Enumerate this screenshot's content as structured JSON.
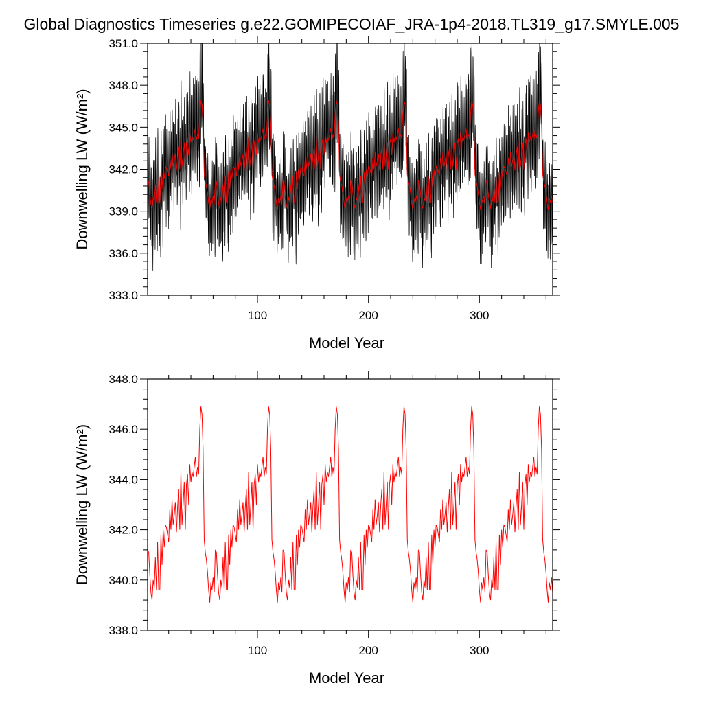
{
  "title": "Global Diagnostics Timeseries g.e22.GOMIPECOIAF_JRA-1p4-2018.TL319_g17.SMYLE.005",
  "colors": {
    "monthly": "#000000",
    "annual": "#ff0000",
    "axes": "#000000"
  },
  "chart_data": [
    {
      "type": "line",
      "title": "",
      "xlabel": "Model Year",
      "ylabel": "Downwelling LW (W/m²)",
      "xlim": [
        1,
        366
      ],
      "ylim": [
        333.0,
        351.0
      ],
      "xticks": [
        100,
        200,
        300
      ],
      "xtick_labels": [
        "100",
        "200",
        "300"
      ],
      "yticks": [
        333.0,
        336.0,
        339.0,
        342.0,
        345.0,
        348.0,
        351.0
      ],
      "ytick_labels": [
        "333.0",
        "336.0",
        "339.0",
        "342.0",
        "345.0",
        "348.0",
        "351.0"
      ],
      "grid": false,
      "cycle_length_years": 61,
      "cycles": 6,
      "series": [
        {
          "name": "",
          "color": "#000000",
          "resolution": "monthly",
          "annual_min_range": [
            335.0,
            337.5
          ],
          "annual_max_range": [
            342.0,
            349.5
          ]
        },
        {
          "name": "",
          "color": "#ff0000",
          "resolution": "annual",
          "cycle_values": [
            341.2,
            341.1,
            340.2,
            339.5,
            339.2,
            340.0,
            339.7,
            340.9,
            339.6,
            341.5,
            339.6,
            339.6,
            341.8,
            340.6,
            342.0,
            341.3,
            342.2,
            342.1,
            341.8,
            341.5,
            342.8,
            342.0,
            343.2,
            342.2,
            342.6,
            343.1,
            341.9,
            342.9,
            343.6,
            342.0,
            344.3,
            342.2,
            343.0,
            343.9,
            342.0,
            343.8,
            344.2,
            343.0,
            344.6,
            343.9,
            344.3,
            344.1,
            344.5,
            344.9,
            344.1,
            344.5,
            344.2,
            346.0,
            346.9,
            346.6,
            345.2,
            341.6,
            341.1,
            340.8,
            340.3,
            339.6,
            339.1,
            339.9,
            339.6,
            340.1,
            339.5
          ]
        }
      ]
    },
    {
      "type": "line",
      "title": "",
      "xlabel": "Model Year",
      "ylabel": "Downwelling LW (W/m²)",
      "xlim": [
        1,
        366
      ],
      "ylim": [
        338.0,
        348.0
      ],
      "xticks": [
        100,
        200,
        300
      ],
      "xtick_labels": [
        "100",
        "200",
        "300"
      ],
      "yticks": [
        338.0,
        340.0,
        342.0,
        344.0,
        346.0,
        348.0
      ],
      "ytick_labels": [
        "338.0",
        "340.0",
        "342.0",
        "344.0",
        "346.0",
        "348.0"
      ],
      "grid": false,
      "series": [
        {
          "name": "",
          "color": "#ff0000",
          "resolution": "annual",
          "same_as": "chart_data.0.series.1"
        }
      ]
    }
  ]
}
